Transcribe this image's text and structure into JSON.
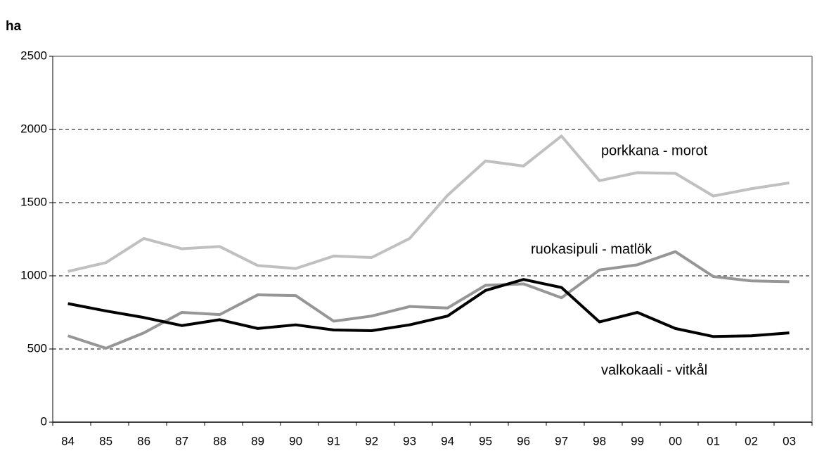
{
  "chart_data": {
    "type": "line",
    "ylabel": "ha",
    "categories": [
      "84",
      "85",
      "86",
      "87",
      "88",
      "89",
      "90",
      "91",
      "92",
      "93",
      "94",
      "95",
      "96",
      "97",
      "98",
      "99",
      "00",
      "01",
      "02",
      "03"
    ],
    "series": [
      {
        "name": "porkkana - morot",
        "color": "#c0c0c0",
        "values": [
          1030,
          1090,
          1255,
          1185,
          1200,
          1070,
          1050,
          1135,
          1125,
          1255,
          1550,
          1785,
          1750,
          1955,
          1650,
          1705,
          1700,
          1545,
          1595,
          1635
        ]
      },
      {
        "name": "ruokasipuli - matlök",
        "color": "#969696",
        "values": [
          590,
          505,
          610,
          750,
          735,
          870,
          865,
          690,
          725,
          790,
          780,
          935,
          945,
          850,
          1040,
          1075,
          1165,
          995,
          965,
          960
        ]
      },
      {
        "name": "valkokaali - vitkål",
        "color": "#000000",
        "values": [
          810,
          760,
          715,
          660,
          700,
          640,
          665,
          630,
          625,
          665,
          725,
          900,
          975,
          920,
          685,
          750,
          640,
          585,
          590,
          610
        ]
      }
    ],
    "ylim": [
      0,
      2500
    ],
    "yticks": [
      0,
      500,
      1000,
      1500,
      2000,
      2500
    ],
    "grid": true
  }
}
